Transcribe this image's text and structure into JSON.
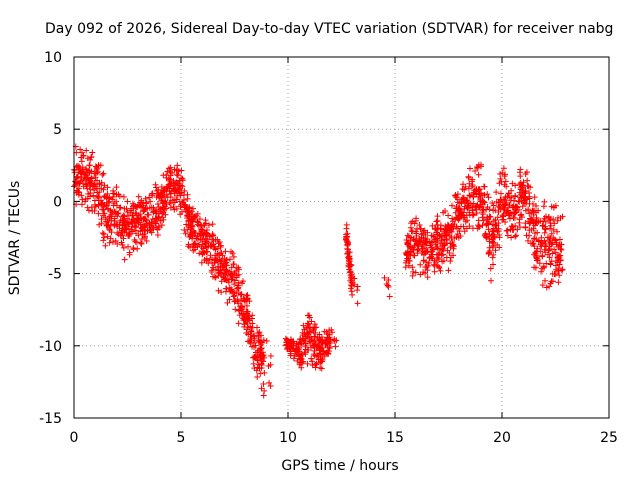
{
  "chart_data": {
    "type": "scatter",
    "title": "Day 092 of 2026, Sidereal Day-to-day VTEC variation (SDTVAR) for receiver nabg",
    "xlabel": "GPS time / hours",
    "ylabel": "SDTVAR / TECUs",
    "xlim": [
      0,
      25
    ],
    "ylim": [
      -15,
      10
    ],
    "xticks": [
      0,
      5,
      10,
      15,
      20,
      25
    ],
    "yticks": [
      -15,
      -10,
      -5,
      0,
      5,
      10
    ],
    "xtick_labels": [
      "0",
      "5",
      "10",
      "15",
      "20",
      "25"
    ],
    "ytick_labels": [
      "-15",
      "-10",
      "-5",
      "0",
      "5",
      "10"
    ],
    "grid": true,
    "marker": "+",
    "color": "#ff0000",
    "series_trend": [
      {
        "x": 0.0,
        "y": 2.0,
        "spread": 2.5
      },
      {
        "x": 0.5,
        "y": 1.5,
        "spread": 2.5
      },
      {
        "x": 1.0,
        "y": 1.5,
        "spread": 2.5
      },
      {
        "x": 1.5,
        "y": -1.0,
        "spread": 2.5
      },
      {
        "x": 2.0,
        "y": -1.0,
        "spread": 2.5
      },
      {
        "x": 2.5,
        "y": -2.0,
        "spread": 2.5
      },
      {
        "x": 3.0,
        "y": -1.5,
        "spread": 2.0
      },
      {
        "x": 3.5,
        "y": -1.0,
        "spread": 2.0
      },
      {
        "x": 4.0,
        "y": -0.5,
        "spread": 2.0
      },
      {
        "x": 4.5,
        "y": 1.0,
        "spread": 2.0
      },
      {
        "x": 5.0,
        "y": 0.5,
        "spread": 2.5
      },
      {
        "x": 5.5,
        "y": -2.0,
        "spread": 2.0
      },
      {
        "x": 6.0,
        "y": -2.5,
        "spread": 2.0
      },
      {
        "x": 6.5,
        "y": -3.5,
        "spread": 2.0
      },
      {
        "x": 7.0,
        "y": -5.0,
        "spread": 2.0
      },
      {
        "x": 7.5,
        "y": -5.5,
        "spread": 2.5
      },
      {
        "x": 8.0,
        "y": -7.5,
        "spread": 2.0
      },
      {
        "x": 8.5,
        "y": -10.0,
        "spread": 2.5
      },
      {
        "x": 8.9,
        "y": -11.5,
        "spread": 2.5
      },
      {
        "x": 9.9,
        "y": -9.8,
        "spread": 0.5
      },
      {
        "x": 10.5,
        "y": -10.5,
        "spread": 1.0
      },
      {
        "x": 11.0,
        "y": -9.5,
        "spread": 2.5
      },
      {
        "x": 11.5,
        "y": -10.5,
        "spread": 1.5
      },
      {
        "x": 12.0,
        "y": -9.5,
        "spread": 1.0
      },
      {
        "x": 12.7,
        "y": -2.0,
        "spread": 1.0
      },
      {
        "x": 13.0,
        "y": -6.0,
        "spread": 1.5
      },
      {
        "x": 14.5,
        "y": -5.8,
        "spread": 1.0
      },
      {
        "x": 15.5,
        "y": -3.5,
        "spread": 1.5
      },
      {
        "x": 16.0,
        "y": -3.0,
        "spread": 2.5
      },
      {
        "x": 16.5,
        "y": -3.5,
        "spread": 2.0
      },
      {
        "x": 17.0,
        "y": -3.0,
        "spread": 2.5
      },
      {
        "x": 17.5,
        "y": -2.5,
        "spread": 2.5
      },
      {
        "x": 18.0,
        "y": -1.0,
        "spread": 2.0
      },
      {
        "x": 18.5,
        "y": 0.0,
        "spread": 2.5
      },
      {
        "x": 19.0,
        "y": 0.5,
        "spread": 3.0
      },
      {
        "x": 19.5,
        "y": -3.0,
        "spread": 3.0
      },
      {
        "x": 20.0,
        "y": 0.0,
        "spread": 3.0
      },
      {
        "x": 20.5,
        "y": -1.0,
        "spread": 2.5
      },
      {
        "x": 21.0,
        "y": 0.5,
        "spread": 2.5
      },
      {
        "x": 21.5,
        "y": -2.0,
        "spread": 3.0
      },
      {
        "x": 22.0,
        "y": -3.0,
        "spread": 3.5
      },
      {
        "x": 22.5,
        "y": -3.5,
        "spread": 3.5
      }
    ]
  }
}
